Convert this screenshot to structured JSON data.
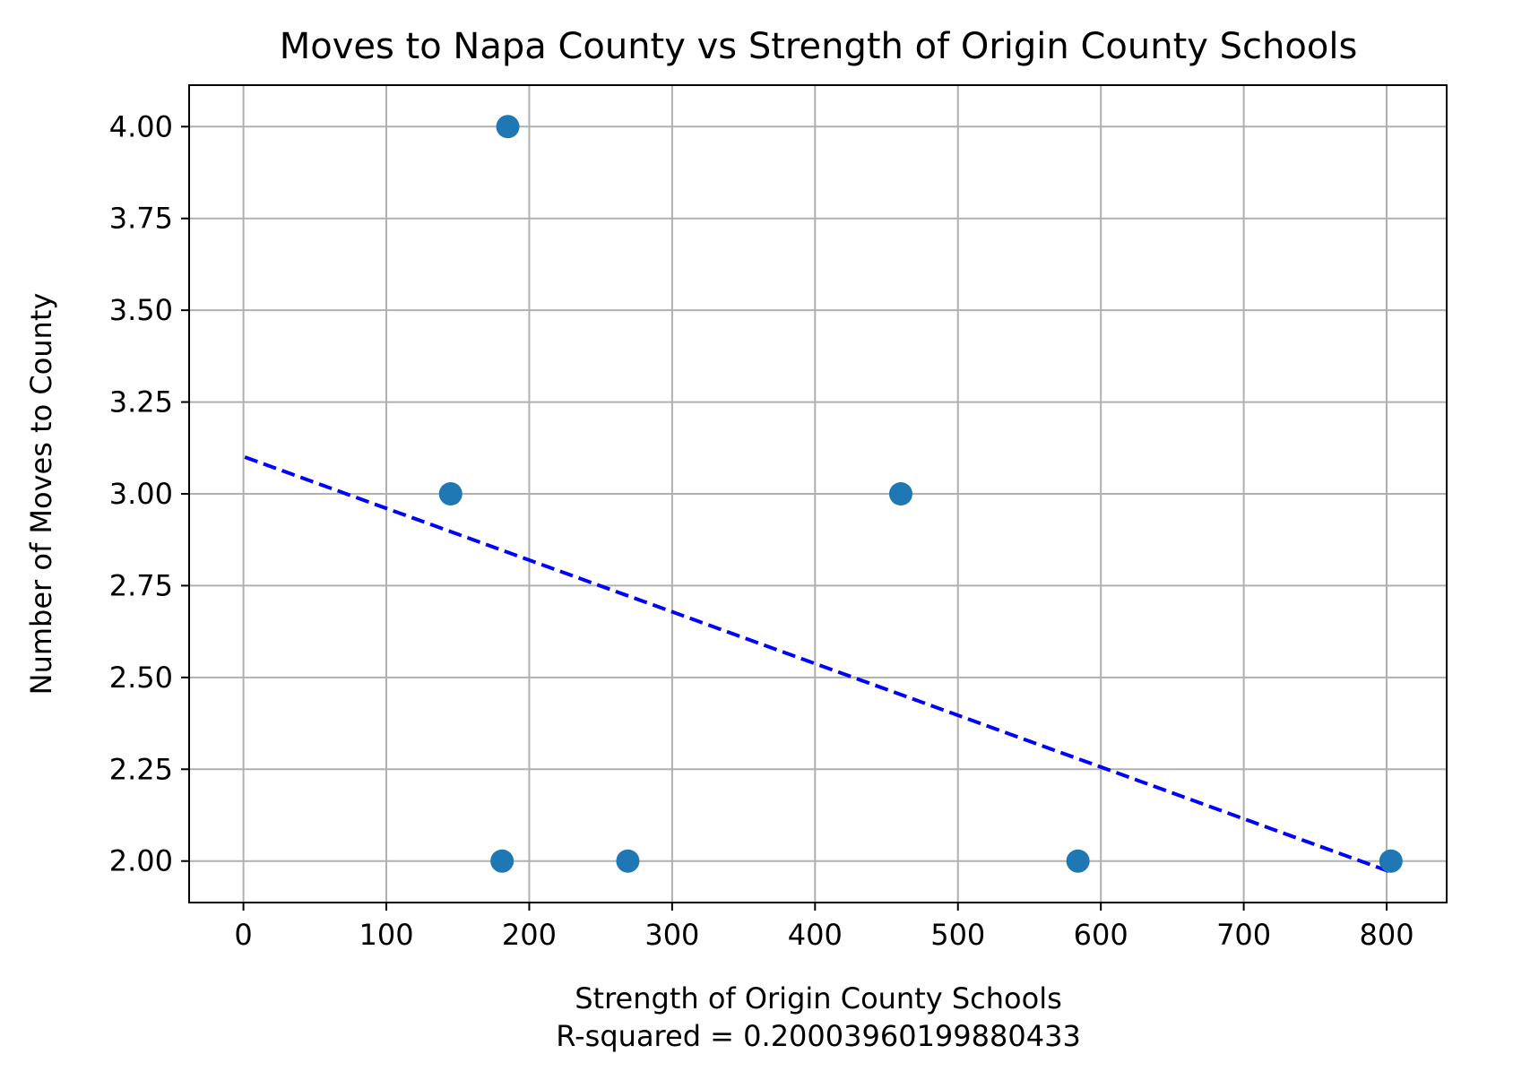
{
  "chart_data": {
    "type": "scatter",
    "title": "Moves to Napa County vs Strength of Origin County Schools",
    "xlabel": "Strength of Origin County Schools",
    "xlabel_note": "R-squared = 0.20003960199880433",
    "ylabel": "Number of Moves to County",
    "xlim": [
      -38,
      842
    ],
    "ylim": [
      1.887,
      4.113
    ],
    "x_ticks": [
      0,
      100,
      200,
      300,
      400,
      500,
      600,
      700,
      800
    ],
    "x_tick_labels": [
      "0",
      "100",
      "200",
      "300",
      "400",
      "500",
      "600",
      "700",
      "800"
    ],
    "y_ticks": [
      2.0,
      2.25,
      2.5,
      2.75,
      3.0,
      3.25,
      3.5,
      3.75,
      4.0
    ],
    "y_tick_labels": [
      "2.00",
      "2.25",
      "2.50",
      "2.75",
      "3.00",
      "3.25",
      "3.50",
      "3.75",
      "4.00"
    ],
    "grid": true,
    "series": [
      {
        "type": "scatter",
        "color": "#1f77b4",
        "points": [
          {
            "x": 185,
            "y": 4.0
          },
          {
            "x": 145,
            "y": 3.0
          },
          {
            "x": 460,
            "y": 3.0
          },
          {
            "x": 181,
            "y": 2.0
          },
          {
            "x": 269,
            "y": 2.0
          },
          {
            "x": 584,
            "y": 2.0
          },
          {
            "x": 803,
            "y": 2.0
          }
        ]
      },
      {
        "type": "line",
        "style": "dashed",
        "color": "#0000ff",
        "points": [
          {
            "x": 1,
            "y": 3.1
          },
          {
            "x": 803,
            "y": 1.97
          }
        ]
      }
    ]
  }
}
